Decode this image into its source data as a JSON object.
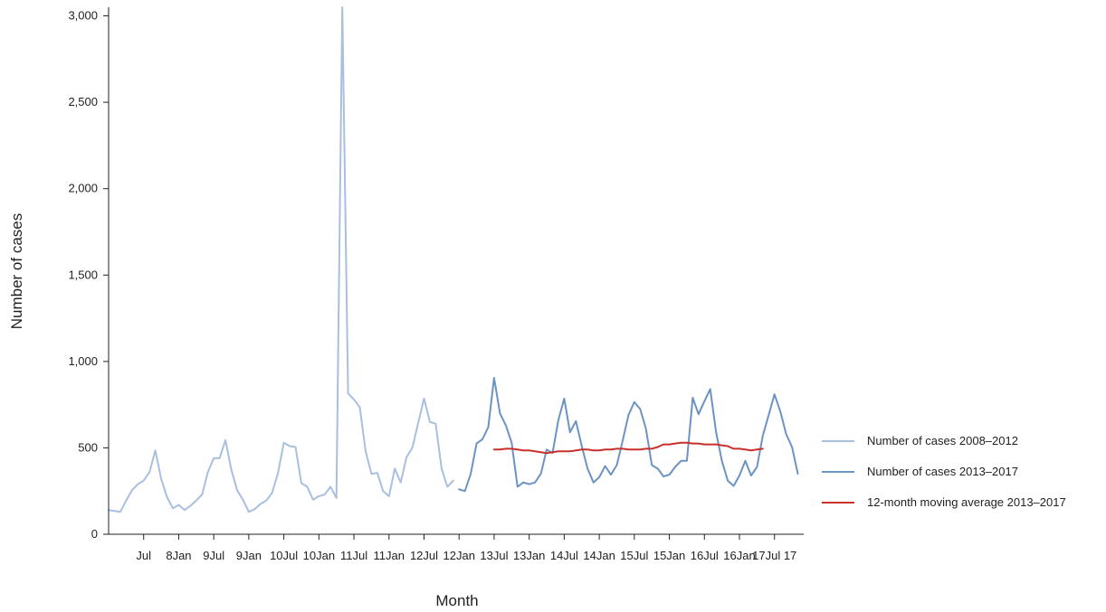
{
  "chart_data": {
    "type": "line",
    "xlabel": "Month",
    "ylabel": "Number of cases",
    "ylim": [
      0,
      3050
    ],
    "y_ticks": [
      0,
      500,
      1000,
      1500,
      2000,
      2500,
      3000
    ],
    "y_tick_labels": [
      "0",
      "500",
      "1,000",
      "1,500",
      "2,000",
      "2,500",
      "3,000"
    ],
    "x_start": "Jan 08",
    "x_end": "Dec 17",
    "x_tick_labels": [
      {
        "month": "Jul 08",
        "label": "Jul"
      },
      {
        "month": "Jan 09",
        "label": "8Jan"
      },
      {
        "month": "Jul 09",
        "label": "9Jul"
      },
      {
        "month": "Jan 10",
        "label": "9Jan"
      },
      {
        "month": "Jul 10",
        "label": "10Jul"
      },
      {
        "month": "Jan 11",
        "label": "10Jan"
      },
      {
        "month": "Jul 11",
        "label": "11Jul"
      },
      {
        "month": "Jan 12",
        "label": "11Jan"
      },
      {
        "month": "Jul 12",
        "label": "12Jul"
      },
      {
        "month": "Jan 13",
        "label": "12Jan"
      },
      {
        "month": "Jul 13",
        "label": "13Jul"
      },
      {
        "month": "Jan 14",
        "label": "13Jan"
      },
      {
        "month": "Jul 14",
        "label": "14Jul"
      },
      {
        "month": "Jan 15",
        "label": "14Jan"
      },
      {
        "month": "Jul 15",
        "label": "15Jul"
      },
      {
        "month": "Jan 16",
        "label": "15Jan"
      },
      {
        "month": "Jul 16",
        "label": "16Jul"
      },
      {
        "month": "Jan 17",
        "label": "16Jan"
      },
      {
        "month": "Jul 17",
        "label": "17Jul 17"
      }
    ],
    "legend_position": "right",
    "series": [
      {
        "name": "Number of cases 2008–2012",
        "color": "#a9bfe0",
        "x_start": "Jan 08",
        "values": [
          140,
          135,
          130,
          195,
          255,
          290,
          310,
          360,
          485,
          320,
          215,
          150,
          170,
          140,
          165,
          195,
          230,
          360,
          440,
          440,
          545,
          375,
          255,
          200,
          130,
          145,
          175,
          195,
          240,
          355,
          530,
          510,
          505,
          295,
          275,
          200,
          220,
          230,
          275,
          210,
          3050,
          815,
          780,
          735,
          480,
          350,
          355,
          250,
          220,
          380,
          300,
          445,
          500,
          645,
          785,
          650,
          640,
          380,
          275,
          310
        ]
      },
      {
        "name": "Number of cases 2013–2017",
        "color": "#6b93c4",
        "x_start": "Jan 13",
        "values": [
          260,
          250,
          350,
          525,
          550,
          620,
          905,
          700,
          630,
          530,
          275,
          300,
          290,
          300,
          350,
          490,
          470,
          660,
          785,
          590,
          655,
          510,
          380,
          300,
          330,
          395,
          345,
          400,
          540,
          690,
          765,
          725,
          610,
          400,
          380,
          335,
          345,
          390,
          425,
          425,
          790,
          695,
          770,
          840,
          590,
          425,
          310,
          280,
          340,
          425,
          340,
          390,
          570,
          690,
          810,
          710,
          580,
          505,
          350
        ]
      },
      {
        "name": "12-month moving average 2013–2017",
        "color": "#c9302c",
        "x_start": "Jul 13",
        "values": [
          490,
          490,
          495,
          495,
          490,
          485,
          485,
          480,
          475,
          470,
          475,
          480,
          480,
          480,
          485,
          490,
          490,
          485,
          485,
          490,
          490,
          495,
          495,
          490,
          490,
          490,
          495,
          495,
          505,
          520,
          520,
          525,
          530,
          530,
          525,
          525,
          520,
          520,
          520,
          515,
          510,
          495,
          495,
          490,
          485,
          490,
          495
        ]
      }
    ]
  }
}
